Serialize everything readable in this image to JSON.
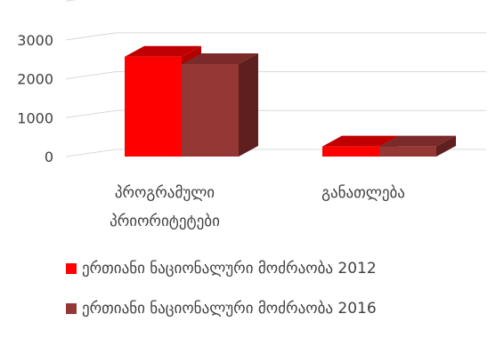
{
  "chart_data": {
    "type": "bar",
    "categories": [
      [
        "პროგრამული",
        "პრიორიტეტები"
      ],
      [
        "განათლება"
      ]
    ],
    "series": [
      {
        "name": "ერთიანი ნაციონალური მოძრაობა 2012",
        "values": [
          2570,
          260
        ],
        "color": "#ff0000",
        "top": "#c00000",
        "side": "#b30000"
      },
      {
        "name": "ერთიანი ნაციონალური მოძრაობა  2016",
        "values": [
          2380,
          260
        ],
        "color": "#953735",
        "top": "#7a2a28",
        "side": "#5e1f1e"
      }
    ],
    "yticks": [
      "0",
      "1000",
      "2000",
      "3000"
    ],
    "ylim": [
      0,
      4000
    ],
    "legend_position": "bottom",
    "grid": true
  }
}
